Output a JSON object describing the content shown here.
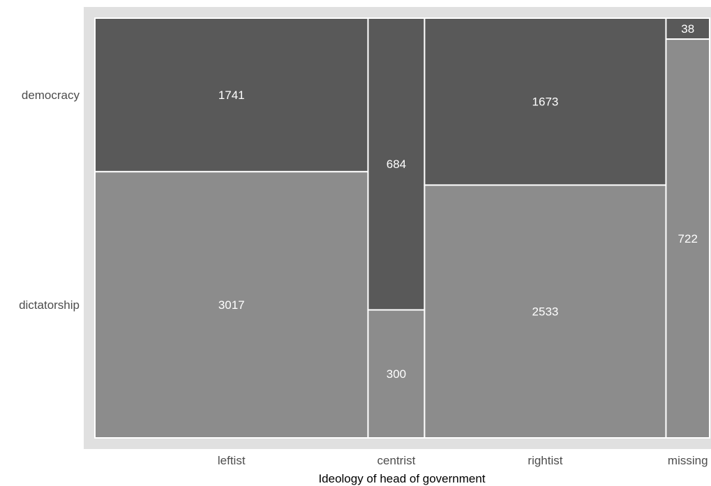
{
  "chart_data": {
    "type": "mosaic",
    "xlabel": "Ideology of head of government",
    "ylabel": "",
    "categories": [
      "leftist",
      "centrist",
      "rightist",
      "missing"
    ],
    "rows": [
      "democracy",
      "dictatorship"
    ],
    "series": [
      {
        "name": "democracy",
        "values": [
          1741,
          684,
          1673,
          38
        ]
      },
      {
        "name": "dictatorship",
        "values": [
          3017,
          300,
          2533,
          722
        ]
      }
    ],
    "grid": false
  },
  "colors": {
    "panel_background": "#e0e0e0",
    "democracy_fill": "#595959",
    "dictatorship_fill": "#8c8c8c",
    "tile_border": "#ffffff",
    "data_label": "#ffffff",
    "tick_label": "#4d4d4d",
    "axis_title": "#000000"
  }
}
